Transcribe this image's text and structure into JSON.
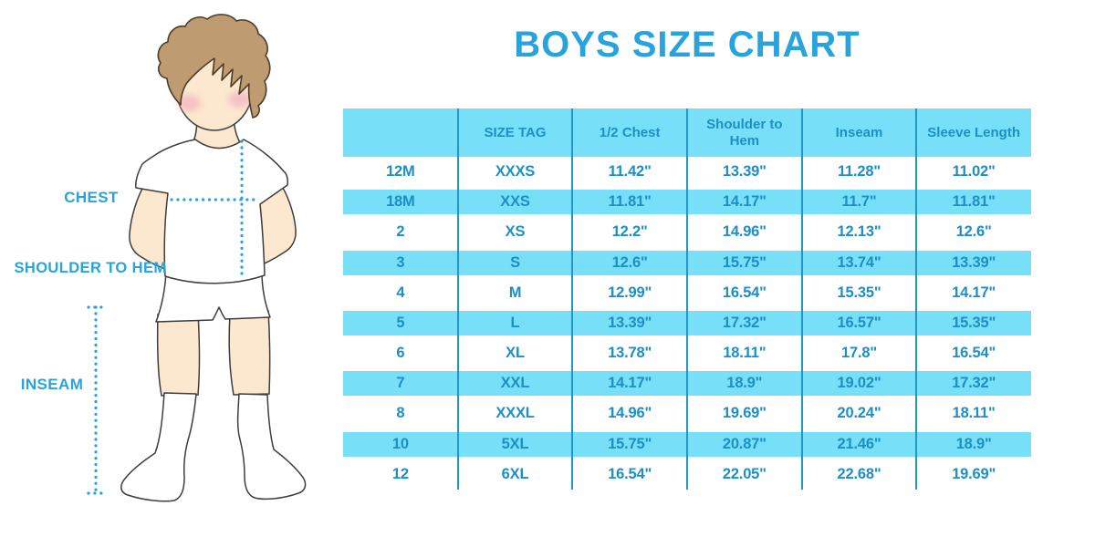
{
  "title": "BOYS SIZE CHART",
  "colors": {
    "accent": "#29A3DC",
    "band": "#77E0F8",
    "text": "#1D8FC4",
    "line": "#2196C9",
    "skin": "#FBE8CF",
    "hair": "#BE9B71",
    "hair_outline": "#4E3D29",
    "outline": "#3D3D3D",
    "cheek": "#F3A9BC"
  },
  "diagram": {
    "chest_label": "CHEST",
    "shoulder_label": "SHOULDER TO HEM",
    "inseam_label": "INSEAM"
  },
  "chart_data": {
    "type": "table",
    "title": "BOYS SIZE CHART",
    "columns": [
      "",
      "SIZE TAG",
      "1/2 Chest",
      "Shoulder to Hem",
      "Inseam",
      "Sleeve Length"
    ],
    "rows": [
      [
        "12M",
        "XXXS",
        "11.42\"",
        "13.39\"",
        "11.28\"",
        "11.02\""
      ],
      [
        "18M",
        "XXS",
        "11.81\"",
        "14.17\"",
        "11.7\"",
        "11.81\""
      ],
      [
        "2",
        "XS",
        "12.2\"",
        "14.96\"",
        "12.13\"",
        "12.6\""
      ],
      [
        "3",
        "S",
        "12.6\"",
        "15.75\"",
        "13.74\"",
        "13.39\""
      ],
      [
        "4",
        "M",
        "12.99\"",
        "16.54\"",
        "15.35\"",
        "14.17\""
      ],
      [
        "5",
        "L",
        "13.39\"",
        "17.32\"",
        "16.57\"",
        "15.35\""
      ],
      [
        "6",
        "XL",
        "13.78\"",
        "18.11\"",
        "17.8\"",
        "16.54\""
      ],
      [
        "7",
        "XXL",
        "14.17\"",
        "18.9\"",
        "19.02\"",
        "17.32\""
      ],
      [
        "8",
        "XXXL",
        "14.96\"",
        "19.69\"",
        "20.24\"",
        "18.11\""
      ],
      [
        "10",
        "5XL",
        "15.75\"",
        "20.87\"",
        "21.46\"",
        "18.9\""
      ],
      [
        "12",
        "6XL",
        "16.54\"",
        "22.05\"",
        "22.68\"",
        "19.69\""
      ]
    ]
  }
}
